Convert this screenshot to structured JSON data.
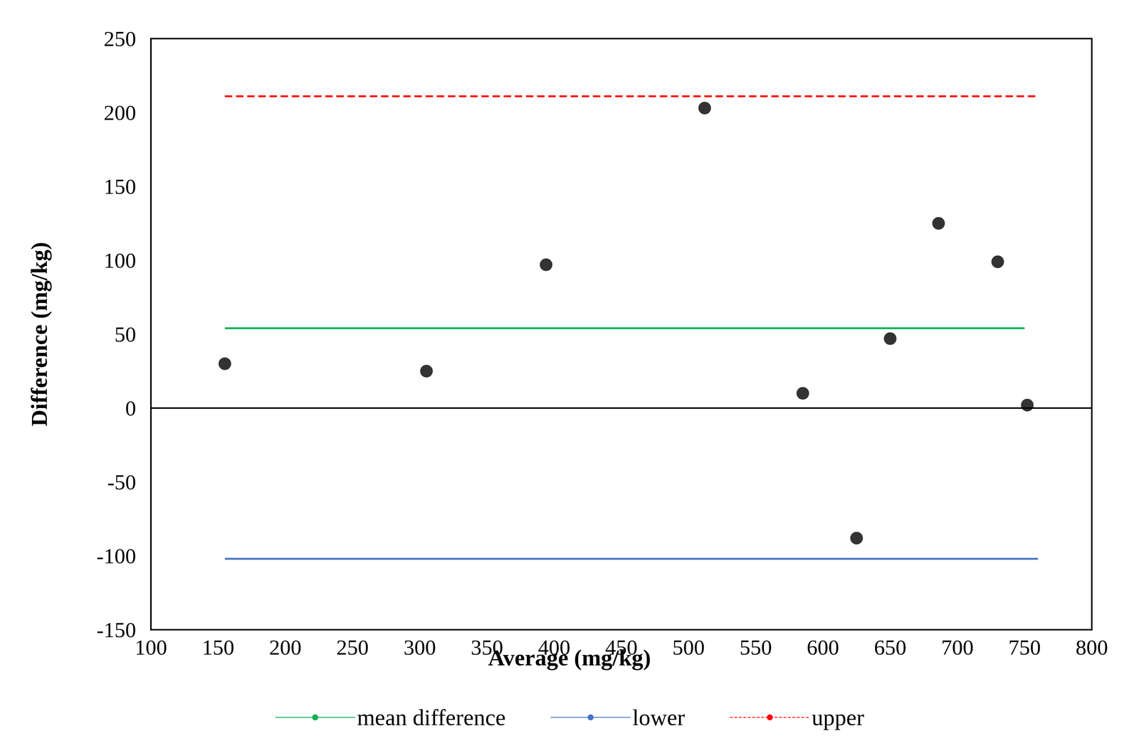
{
  "chart_data": {
    "type": "scatter",
    "x_label": "Average (mg/kg)",
    "y_label": "Difference (mg/kg)",
    "points": {
      "x": [
        155,
        305,
        394,
        512,
        585,
        625,
        650,
        686,
        730,
        752
      ],
      "values": [
        30,
        25,
        97,
        203,
        10,
        -88,
        47,
        125,
        99,
        2
      ],
      "color": "#000000",
      "marker": "circle"
    },
    "series": [
      {
        "name": "mean difference",
        "type": "line",
        "color": "#00b050",
        "line_style": "solid",
        "x": [
          155,
          750
        ],
        "values": [
          54,
          54
        ]
      },
      {
        "name": "lower",
        "type": "line",
        "color": "#4472c4",
        "line_style": "solid",
        "x": [
          155,
          760
        ],
        "values": [
          -102,
          -102
        ]
      },
      {
        "name": "upper",
        "type": "line",
        "color": "#ff0000",
        "line_style": "dashed",
        "x": [
          155,
          760
        ],
        "values": [
          211,
          211
        ]
      }
    ],
    "xlim": [
      100,
      800
    ],
    "xticks": [
      100,
      150,
      200,
      250,
      300,
      350,
      400,
      450,
      500,
      550,
      600,
      650,
      700,
      750,
      800
    ],
    "ylim": [
      -150,
      250
    ],
    "yticks": [
      -150,
      -100,
      -50,
      0,
      50,
      100,
      150,
      200,
      250
    ],
    "grid": false,
    "legend": "bottom"
  }
}
